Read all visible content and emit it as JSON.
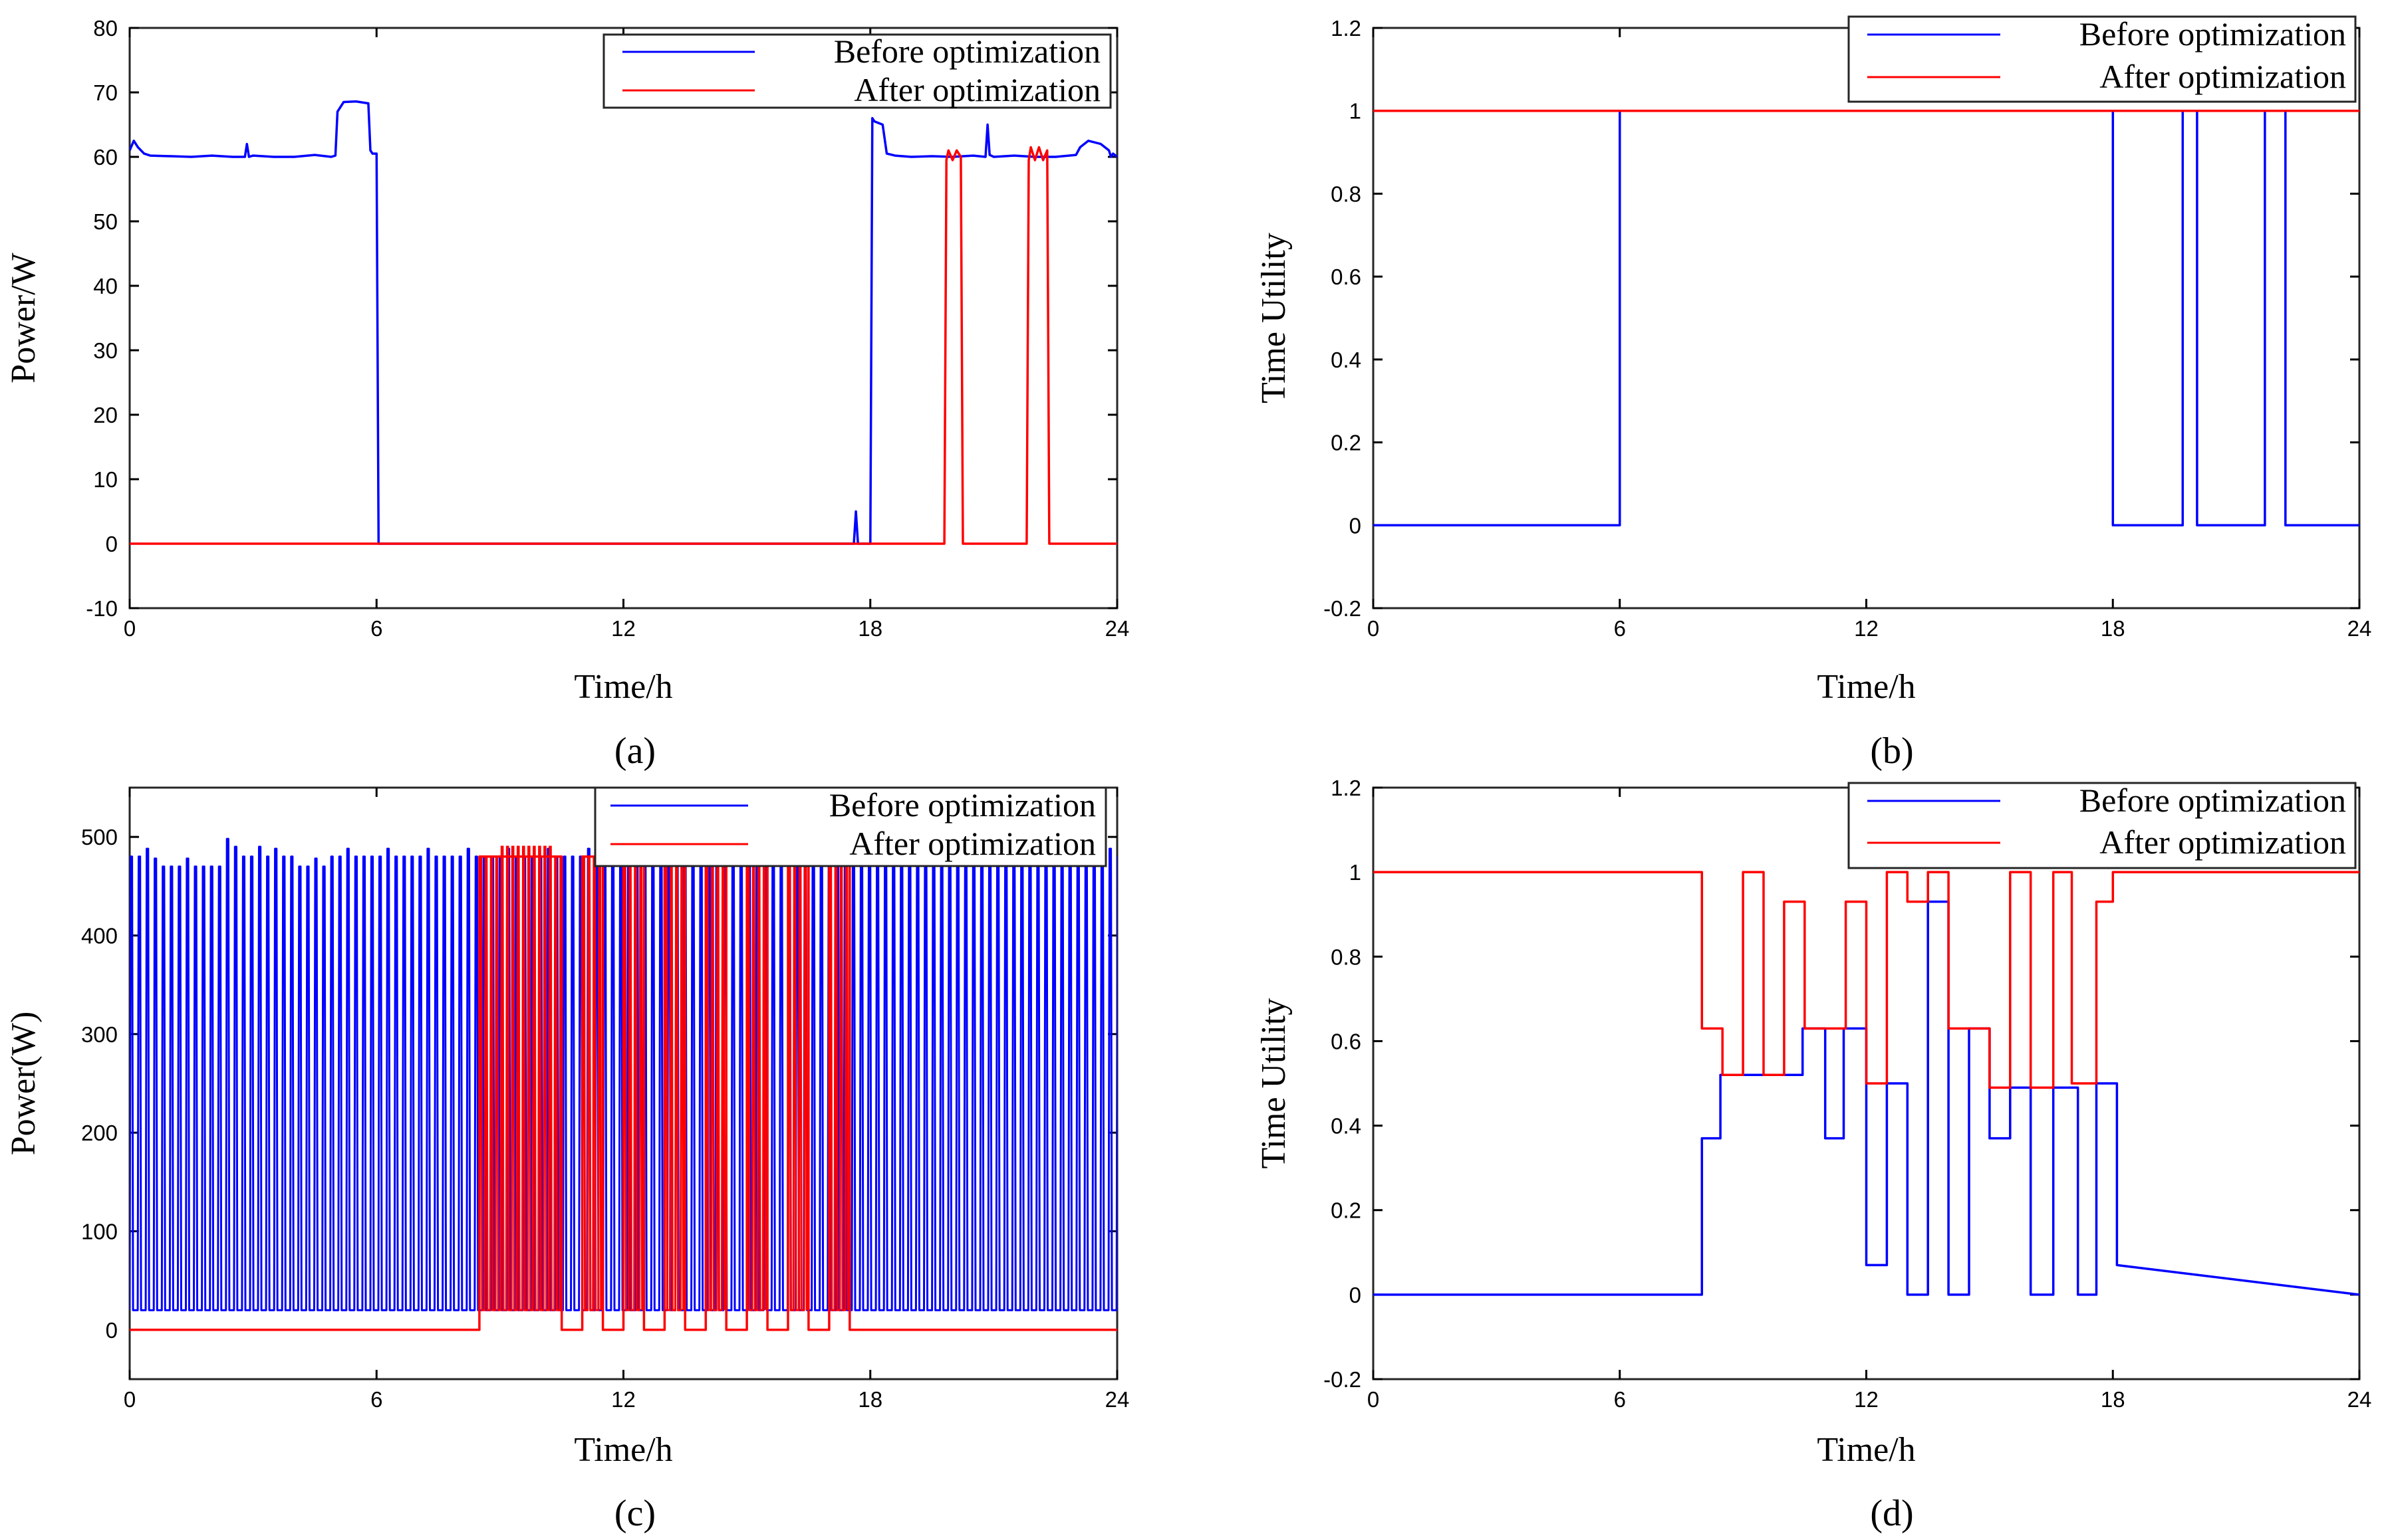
{
  "colors": {
    "before": "#0000ff",
    "after": "#ff0000",
    "axis": "#000000",
    "frame": "#262626"
  },
  "chart_data": [
    {
      "id": "a",
      "type": "line",
      "caption": "(a)",
      "xlabel": "Time/h",
      "ylabel": "Power/W",
      "xlim": [
        0,
        24
      ],
      "ylim": [
        -10,
        80
      ],
      "xticks": [
        0,
        6,
        12,
        18,
        24
      ],
      "yticks": [
        -10,
        0,
        10,
        20,
        30,
        40,
        50,
        60,
        70,
        80
      ],
      "legend": {
        "position": "top-right",
        "entries": [
          "Before optimization",
          "After optimization"
        ]
      },
      "series": [
        {
          "name": "Before optimization",
          "color": "#0000ff",
          "x": [
            0,
            0.1,
            0.2,
            0.35,
            0.5,
            1,
            1.5,
            2,
            2.5,
            2.8,
            2.85,
            2.9,
            3,
            3.5,
            4,
            4.5,
            4.9,
            5,
            5.05,
            5.2,
            5.5,
            5.8,
            5.85,
            5.9,
            6,
            6.05,
            6.1,
            12,
            17.6,
            17.65,
            17.7,
            17.75,
            17.8,
            18,
            18.05,
            18.1,
            18.3,
            18.4,
            18.6,
            19,
            19.5,
            20,
            20.5,
            20.8,
            20.85,
            20.9,
            21,
            21.5,
            22,
            22.5,
            23,
            23.1,
            23.3,
            23.6,
            23.8,
            23.85,
            23.9,
            24
          ],
          "y": [
            61,
            62.5,
            61.5,
            60.5,
            60.2,
            60.1,
            60,
            60.2,
            60,
            60,
            62,
            60,
            60.2,
            60,
            60,
            60.3,
            60,
            60.2,
            67,
            68.5,
            68.6,
            68.3,
            61,
            60.5,
            60.5,
            0,
            0,
            0,
            0,
            5,
            0,
            0,
            0,
            0,
            66,
            65.5,
            65,
            60.5,
            60.2,
            60,
            60.1,
            60,
            60.2,
            60,
            65,
            60.3,
            60,
            60.2,
            60,
            60,
            60.3,
            61.5,
            62.5,
            62,
            61,
            60,
            60.5,
            60
          ]
        },
        {
          "name": "After optimization",
          "color": "#ff0000",
          "x": [
            0,
            19.8,
            19.85,
            19.9,
            20.0,
            20.1,
            20.2,
            20.25,
            20.3,
            21.8,
            21.85,
            21.9,
            22.0,
            22.1,
            22.2,
            22.3,
            22.35,
            22.4,
            24
          ],
          "y": [
            0,
            0,
            59.5,
            61,
            59.5,
            61,
            60,
            0,
            0,
            0,
            59.5,
            61.5,
            59.5,
            61.5,
            59.5,
            61,
            0,
            0,
            0
          ]
        }
      ]
    },
    {
      "id": "b",
      "type": "line",
      "caption": "(b)",
      "xlabel": "Time/h",
      "ylabel": "Time Utility",
      "xlim": [
        0,
        24
      ],
      "ylim": [
        -0.2,
        1.2
      ],
      "xticks": [
        0,
        6,
        12,
        18,
        24
      ],
      "yticks": [
        -0.2,
        0,
        0.2,
        0.4,
        0.6,
        0.8,
        1,
        1.2
      ],
      "legend": {
        "position": "top-right",
        "entries": [
          "Before optimization",
          "After optimization"
        ]
      },
      "series": [
        {
          "name": "Before optimization",
          "color": "#0000ff",
          "x": [
            0,
            6,
            6,
            18,
            18,
            19.7,
            19.7,
            20.05,
            20.05,
            21.7,
            21.7,
            22.2,
            22.2,
            24
          ],
          "y": [
            0,
            0,
            1,
            1,
            0,
            0,
            1,
            1,
            0,
            0,
            1,
            1,
            0,
            0
          ]
        },
        {
          "name": "After optimization",
          "color": "#ff0000",
          "x": [
            0,
            24
          ],
          "y": [
            1,
            1
          ]
        }
      ]
    },
    {
      "id": "c",
      "type": "line",
      "caption": "(c)",
      "xlabel": "Time/h",
      "ylabel": "Power(W)",
      "xlim": [
        0,
        24
      ],
      "ylim": [
        -50,
        550
      ],
      "xticks": [
        0,
        6,
        12,
        18,
        24
      ],
      "yticks": [
        0,
        100,
        200,
        300,
        400,
        500
      ],
      "legend": {
        "position": "top-right",
        "entries": [
          "Before optimization",
          "After optimization"
        ]
      },
      "series": [
        {
          "name": "Before optimization",
          "color": "#0000ff",
          "pulse_period_h": 0.195,
          "low": 20,
          "high_levels": [
            {
              "from": 0,
              "to": 0.5,
              "value": 480
            },
            {
              "from": 0.5,
              "to": 1.3,
              "value": 470
            },
            {
              "from": 1.3,
              "to": 2.3,
              "value": 470
            },
            {
              "from": 2.3,
              "to": 2.6,
              "value": 490
            },
            {
              "from": 2.6,
              "to": 3.0,
              "value": 480
            },
            {
              "from": 3.0,
              "to": 3.2,
              "value": 490
            },
            {
              "from": 3.2,
              "to": 3.9,
              "value": 480
            },
            {
              "from": 3.9,
              "to": 4.8,
              "value": 470
            },
            {
              "from": 4.8,
              "to": 24,
              "value": 480
            }
          ]
        },
        {
          "name": "After optimization",
          "color": "#ff0000",
          "x": [
            0,
            8.5,
            8.5,
            10.5,
            10.5,
            11.0,
            11.0,
            11.5,
            11.5,
            12.0,
            12.0,
            12.5,
            12.5,
            13.0,
            13.0,
            13.5,
            13.5,
            14.0,
            14.0,
            14.5,
            14.5,
            15.0,
            15.0,
            15.5,
            15.5,
            16.0,
            16.0,
            16.5,
            16.5,
            17.0,
            17.0,
            17.5,
            17.5,
            24
          ],
          "y": [
            0,
            0,
            480,
            480,
            0,
            0,
            480,
            480,
            0,
            0,
            480,
            480,
            0,
            0,
            480,
            480,
            0,
            0,
            480,
            480,
            0,
            0,
            480,
            480,
            0,
            0,
            480,
            480,
            0,
            0,
            480,
            480,
            0,
            0
          ],
          "pulse_zone": {
            "from": 8.5,
            "to": 17.5,
            "period_h": 0.13,
            "low": 20,
            "high": 480,
            "peak_from": 8.9,
            "peak_to": 10.2,
            "peak": 490
          }
        }
      ]
    },
    {
      "id": "d",
      "type": "line",
      "caption": "(d)",
      "xlabel": "Time/h",
      "ylabel": "Time Utility",
      "xlim": [
        0,
        24
      ],
      "ylim": [
        -0.2,
        1.2
      ],
      "xticks": [
        0,
        6,
        12,
        18,
        24
      ],
      "yticks": [
        -0.2,
        0,
        0.2,
        0.4,
        0.6,
        0.8,
        1,
        1.2
      ],
      "legend": {
        "position": "top-right",
        "entries": [
          "Before optimization",
          "After optimization"
        ]
      },
      "series": [
        {
          "name": "Before optimization",
          "color": "#0000ff",
          "x": [
            0,
            8,
            8,
            8.45,
            8.45,
            10.45,
            10.45,
            11.0,
            11.0,
            11.45,
            11.45,
            12.0,
            12.0,
            12.5,
            12.5,
            13.0,
            13.0,
            13.5,
            13.5,
            14.0,
            14.0,
            14.5,
            14.5,
            15.0,
            15.0,
            15.5,
            15.5,
            16.0,
            16.0,
            16.55,
            16.55,
            17.15,
            17.15,
            17.6,
            17.6,
            18.1,
            18.1,
            24
          ],
          "y": [
            0,
            0,
            0.37,
            0.37,
            0.52,
            0.52,
            0.63,
            0.63,
            0.37,
            0.37,
            0.63,
            0.63,
            0.07,
            0.07,
            0.5,
            0.5,
            0,
            0,
            0.93,
            0.93,
            0,
            0,
            0.63,
            0.63,
            0.37,
            0.37,
            0.49,
            0.49,
            0,
            0,
            0.49,
            0.49,
            0,
            0,
            0.5,
            0.5,
            0.07,
            0
          ]
        },
        {
          "name": "After optimization",
          "color": "#ff0000",
          "x": [
            0,
            8,
            8,
            8.5,
            8.5,
            9.0,
            9.0,
            9.5,
            9.5,
            10.0,
            10.0,
            10.5,
            10.5,
            11.5,
            11.5,
            12.0,
            12.0,
            12.5,
            12.5,
            13.0,
            13.0,
            13.5,
            13.5,
            14.0,
            14.0,
            14.5,
            14.5,
            15.0,
            15.0,
            15.5,
            15.5,
            16.0,
            16.0,
            16.55,
            16.55,
            17.0,
            17.0,
            17.6,
            17.6,
            18.0,
            18.0,
            24
          ],
          "y": [
            1,
            1,
            0.63,
            0.63,
            0.52,
            0.52,
            1,
            1,
            0.52,
            0.52,
            0.93,
            0.93,
            0.63,
            0.63,
            0.93,
            0.93,
            0.5,
            0.5,
            1,
            1,
            0.93,
            0.93,
            1,
            1,
            0.63,
            0.63,
            0.63,
            0.63,
            0.49,
            0.49,
            1,
            1,
            0.49,
            0.49,
            1,
            1,
            0.5,
            0.5,
            0.93,
            0.93,
            1,
            1
          ]
        }
      ]
    }
  ]
}
